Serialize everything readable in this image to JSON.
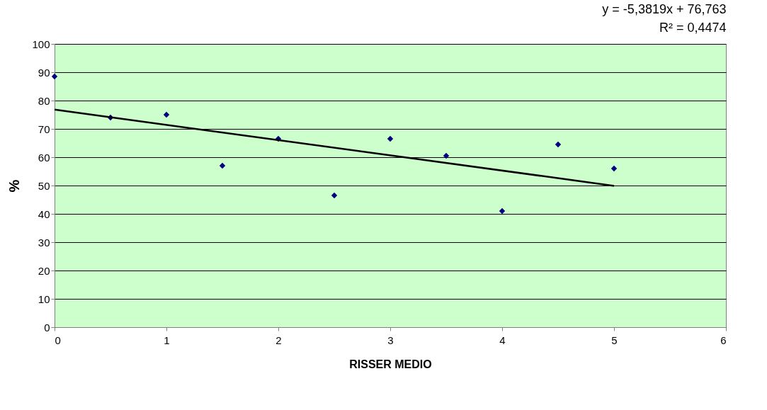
{
  "chart_data": {
    "type": "scatter",
    "xlabel": "RISSER MEDIO",
    "ylabel": "%",
    "annotations": [
      "y = -5,3819x + 76,763",
      "R² = 0,4474"
    ],
    "xlim": [
      0,
      6
    ],
    "xticks": [
      0,
      1,
      2,
      3,
      4,
      5,
      6
    ],
    "ylim": [
      0,
      100
    ],
    "yticks": [
      0,
      10,
      20,
      30,
      40,
      50,
      60,
      70,
      80,
      90,
      100
    ],
    "grid": "y",
    "series": [
      {
        "type": "scatter",
        "marker": "diamond",
        "color": "#000080",
        "x": [
          0,
          0.5,
          1,
          1.5,
          2,
          2.5,
          3,
          3.5,
          4,
          4.5,
          5
        ],
        "values": [
          88.5,
          74,
          75,
          57,
          66.5,
          46.5,
          66.5,
          60.5,
          41,
          64.5,
          56
        ]
      },
      {
        "type": "line",
        "color": "#000000",
        "x": [
          0,
          5
        ],
        "values": [
          76.8,
          49.9
        ]
      }
    ]
  }
}
